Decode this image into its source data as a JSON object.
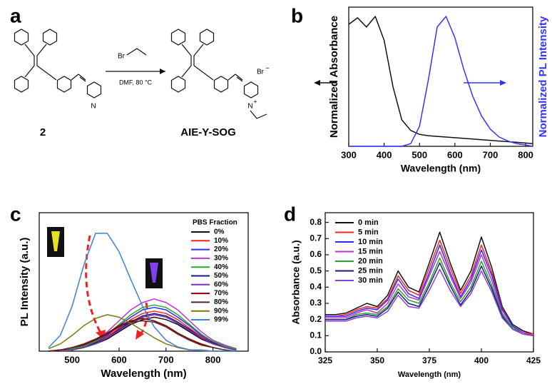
{
  "scheme": {
    "label": "a",
    "reactant": "2",
    "reagent": "Br",
    "conditions": "DMF, 80 °C",
    "product": "AIE-Y-SOG",
    "atoms": [
      "N",
      "N",
      "+",
      "Br",
      "−"
    ]
  },
  "chart_data": [
    {
      "label": "b",
      "type": "line",
      "x": [
        300,
        325,
        350,
        375,
        400,
        425,
        450,
        475,
        500,
        525,
        550,
        575,
        600,
        625,
        650,
        675,
        700,
        725,
        750,
        775,
        800,
        820
      ],
      "xlim": [
        300,
        820
      ],
      "xticks": [
        300,
        400,
        500,
        600,
        700,
        800
      ],
      "ylim": [
        0,
        1.05
      ],
      "y2lim": [
        0,
        1.05
      ],
      "xlabel": "Wavelength (nm)",
      "ylabel": "Normalized Absorbance",
      "y2label": "Normalized PL Intensity",
      "y2color": "#3333ff",
      "series": [
        {
          "color": "#111111",
          "values": [
            0.92,
            0.97,
            0.9,
            0.98,
            0.8,
            0.45,
            0.2,
            0.12,
            0.09,
            0.08,
            0.075,
            0.07,
            0.065,
            0.06,
            0.055,
            0.05,
            0.045,
            0.04,
            0.035,
            0.03,
            0.025,
            0.02
          ]
        },
        {
          "color": "#3333ff",
          "axis": "y2",
          "values": [
            0,
            0,
            0,
            0,
            0,
            0,
            0,
            0.02,
            0.15,
            0.5,
            0.9,
            0.98,
            0.82,
            0.58,
            0.38,
            0.23,
            0.13,
            0.07,
            0.04,
            0.02,
            0.01,
            0
          ]
        }
      ]
    },
    {
      "label": "c",
      "type": "line",
      "x": [
        450,
        475,
        500,
        525,
        550,
        575,
        600,
        625,
        650,
        675,
        700,
        725,
        750,
        775,
        800,
        825,
        850
      ],
      "xlim": [
        430,
        875
      ],
      "xticks": [
        500,
        600,
        700,
        800
      ],
      "ylim": [
        0,
        1.14
      ],
      "xlabel": "Wavelength (nm)",
      "ylabel": "PL Intensity (a.u.)",
      "legend": "upper right",
      "legend_title": "PBS Fraction",
      "series": [
        {
          "name": "0%",
          "color": "#111111",
          "values": [
            0,
            0.01,
            0.01,
            0.03,
            0.06,
            0.1,
            0.16,
            0.22,
            0.26,
            0.28,
            0.26,
            0.22,
            0.16,
            0.1,
            0.06,
            0.03,
            0.01
          ]
        },
        {
          "name": "10%",
          "color": "#ff2020",
          "values": [
            0,
            0.01,
            0.02,
            0.03,
            0.07,
            0.12,
            0.19,
            0.26,
            0.31,
            0.33,
            0.31,
            0.26,
            0.19,
            0.12,
            0.07,
            0.03,
            0.02
          ]
        },
        {
          "name": "20%",
          "color": "#2a2aff",
          "values": [
            0,
            0.01,
            0.02,
            0.04,
            0.08,
            0.13,
            0.21,
            0.28,
            0.34,
            0.36,
            0.34,
            0.28,
            0.21,
            0.13,
            0.08,
            0.04,
            0.02
          ]
        },
        {
          "name": "30%",
          "color": "#c030d0",
          "values": [
            0,
            0.01,
            0.02,
            0.05,
            0.09,
            0.16,
            0.25,
            0.34,
            0.4,
            0.43,
            0.4,
            0.34,
            0.25,
            0.16,
            0.09,
            0.05,
            0.02
          ]
        },
        {
          "name": "40%",
          "color": "#22aa22",
          "values": [
            0,
            0.01,
            0.02,
            0.04,
            0.08,
            0.14,
            0.22,
            0.3,
            0.36,
            0.38,
            0.36,
            0.3,
            0.22,
            0.14,
            0.08,
            0.04,
            0.02
          ]
        },
        {
          "name": "50%",
          "color": "#1a1a80",
          "values": [
            0,
            0.01,
            0.01,
            0.03,
            0.07,
            0.11,
            0.18,
            0.24,
            0.29,
            0.31,
            0.29,
            0.24,
            0.18,
            0.11,
            0.07,
            0.03,
            0.01
          ]
        },
        {
          "name": "60%",
          "color": "#7a30b0",
          "values": [
            0,
            0.01,
            0.01,
            0.03,
            0.06,
            0.11,
            0.17,
            0.23,
            0.28,
            0.3,
            0.28,
            0.23,
            0.17,
            0.11,
            0.06,
            0.03,
            0.01
          ]
        },
        {
          "name": "70%",
          "color": "#800000",
          "values": [
            0,
            0.01,
            0.03,
            0.06,
            0.1,
            0.15,
            0.21,
            0.25,
            0.27,
            0.25,
            0.21,
            0.15,
            0.1,
            0.06,
            0.03,
            0.01,
            0
          ]
        },
        {
          "name": "80%",
          "color": "#5a2020",
          "values": [
            0,
            0.01,
            0.03,
            0.05,
            0.09,
            0.14,
            0.2,
            0.24,
            0.25,
            0.24,
            0.2,
            0.14,
            0.09,
            0.05,
            0.03,
            0.01,
            0
          ]
        },
        {
          "name": "90%",
          "color": "#7a7a10",
          "values": [
            0.02,
            0.06,
            0.13,
            0.21,
            0.27,
            0.3,
            0.28,
            0.23,
            0.17,
            0.11,
            0.06,
            0.03,
            0.01,
            0.01,
            0,
            0,
            0
          ]
        },
        {
          "name": "99%",
          "color": "#3d7fd9",
          "values": [
            0.03,
            0.13,
            0.37,
            0.71,
            0.97,
            0.97,
            0.82,
            0.59,
            0.37,
            0.2,
            0.09,
            0.035,
            0.012,
            0.004,
            0.001,
            0,
            0
          ]
        }
      ]
    },
    {
      "label": "d",
      "type": "line",
      "x": [
        325,
        330,
        335,
        340,
        345,
        350,
        355,
        360,
        365,
        370,
        375,
        380,
        385,
        390,
        395,
        400,
        405,
        410,
        415,
        420,
        425
      ],
      "xlim": [
        325,
        425
      ],
      "xticks": [
        325,
        350,
        375,
        400,
        425
      ],
      "ylim": [
        0,
        0.86
      ],
      "yticks": [
        {
          "value": 0,
          "label": "0.0"
        },
        0.1,
        0.2,
        0.3,
        0.4,
        0.5,
        0.6,
        0.7,
        0.8
      ],
      "xlabel": "Wavelength (nm)",
      "ylabel": "Absorbance (a.u.)",
      "legend": "upper left",
      "series": [
        {
          "name": "0 min",
          "color": "#111111",
          "values": [
            0.23,
            0.23,
            0.24,
            0.27,
            0.3,
            0.28,
            0.35,
            0.5,
            0.4,
            0.37,
            0.55,
            0.74,
            0.55,
            0.38,
            0.5,
            0.71,
            0.52,
            0.28,
            0.17,
            0.13,
            0.11
          ]
        },
        {
          "name": "5 min",
          "color": "#ff2020",
          "values": [
            0.22,
            0.22,
            0.23,
            0.26,
            0.28,
            0.27,
            0.33,
            0.47,
            0.38,
            0.35,
            0.52,
            0.69,
            0.52,
            0.36,
            0.47,
            0.66,
            0.49,
            0.27,
            0.16,
            0.12,
            0.11
          ]
        },
        {
          "name": "10 min",
          "color": "#2a2aff",
          "values": [
            0.22,
            0.22,
            0.22,
            0.25,
            0.27,
            0.26,
            0.32,
            0.45,
            0.36,
            0.33,
            0.49,
            0.66,
            0.49,
            0.34,
            0.45,
            0.63,
            0.47,
            0.26,
            0.16,
            0.12,
            0.1
          ]
        },
        {
          "name": "15 min",
          "color": "#c030d0",
          "values": [
            0.21,
            0.21,
            0.21,
            0.24,
            0.26,
            0.24,
            0.3,
            0.42,
            0.34,
            0.32,
            0.47,
            0.62,
            0.47,
            0.33,
            0.43,
            0.6,
            0.44,
            0.24,
            0.15,
            0.12,
            0.1
          ]
        },
        {
          "name": "20 min",
          "color": "#22aa22",
          "values": [
            0.2,
            0.2,
            0.2,
            0.23,
            0.24,
            0.23,
            0.28,
            0.39,
            0.32,
            0.3,
            0.43,
            0.58,
            0.43,
            0.31,
            0.4,
            0.56,
            0.41,
            0.23,
            0.15,
            0.11,
            0.1
          ]
        },
        {
          "name": "25 min",
          "color": "#1a1a80",
          "values": [
            0.2,
            0.2,
            0.2,
            0.22,
            0.23,
            0.22,
            0.27,
            0.37,
            0.3,
            0.28,
            0.41,
            0.55,
            0.41,
            0.29,
            0.38,
            0.53,
            0.39,
            0.22,
            0.14,
            0.11,
            0.1
          ]
        },
        {
          "name": "30 min",
          "color": "#8a40e0",
          "values": [
            0.19,
            0.19,
            0.19,
            0.21,
            0.22,
            0.21,
            0.25,
            0.35,
            0.28,
            0.27,
            0.38,
            0.51,
            0.38,
            0.28,
            0.36,
            0.5,
            0.37,
            0.21,
            0.14,
            0.11,
            0.1
          ]
        }
      ]
    }
  ]
}
